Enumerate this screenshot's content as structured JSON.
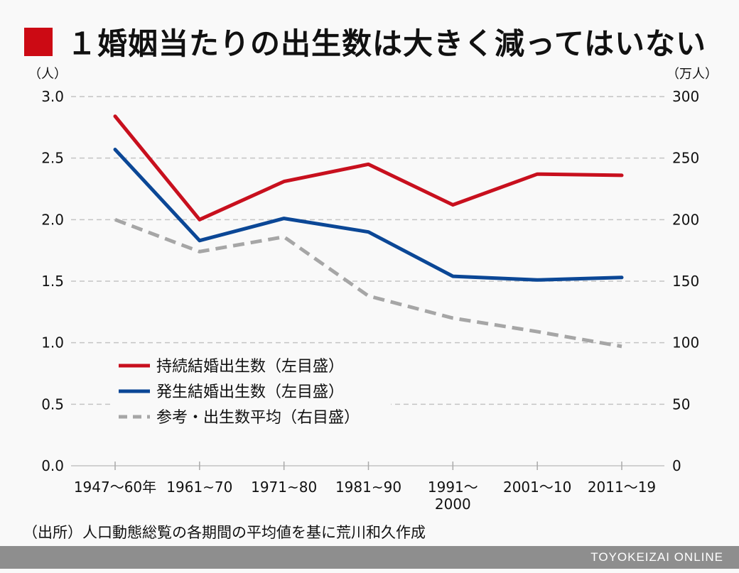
{
  "title": "１婚姻当たりの出生数は大きく減ってはいない",
  "source": "（出所）人口動態総覧の各期間の平均値を基に荒川和久作成",
  "footer": "TOYOKEIZAI ONLINE",
  "colors": {
    "accent": "#cc0a14",
    "red": "#c8101e",
    "blue": "#0b4796",
    "gray": "#a6a6a6"
  },
  "chart_data": {
    "type": "line",
    "categories": [
      "1947〜60年",
      "1961~70",
      "1971~80",
      "1981~90",
      "1991〜\n2000",
      "2001〜10",
      "2011〜19"
    ],
    "y_left": {
      "unit": "（人）",
      "range": [
        0,
        3.0
      ],
      "ticks": [
        "0.0",
        "0.5",
        "1.0",
        "1.5",
        "2.0",
        "2.5",
        "3.0"
      ]
    },
    "y_right": {
      "unit": "（万人）",
      "range": [
        0,
        300
      ],
      "ticks": [
        "0",
        "50",
        "100",
        "150",
        "200",
        "250",
        "300"
      ]
    },
    "grid": true,
    "legend_position": "bottom-left",
    "series": [
      {
        "name": "持続結婚出生数（左目盛）",
        "axis": "left",
        "style": "solid",
        "color": "#c8101e",
        "values": [
          2.84,
          2.0,
          2.31,
          2.45,
          2.12,
          2.37,
          2.36
        ]
      },
      {
        "name": "発生結婚出生数（左目盛）",
        "axis": "left",
        "style": "solid",
        "color": "#0b4796",
        "values": [
          2.57,
          1.83,
          2.01,
          1.9,
          1.54,
          1.51,
          1.53
        ]
      },
      {
        "name": "参考・出生数平均（右目盛）",
        "axis": "right",
        "style": "dashed",
        "color": "#a6a6a6",
        "values": [
          200,
          174,
          186,
          138,
          120,
          109,
          97
        ]
      }
    ]
  }
}
